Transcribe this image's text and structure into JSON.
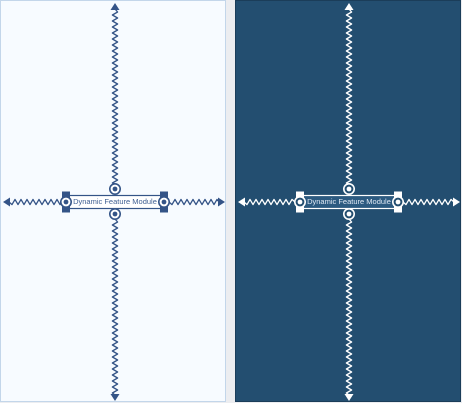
{
  "panels": [
    {
      "theme": "light",
      "background": "#f7fbff",
      "border": "#c3d6ea",
      "stroke": "#345487",
      "chip_fill": "#ffffff",
      "chip_text": "#3f5f92",
      "label": "Dynamic Feature Module"
    },
    {
      "theme": "dark",
      "background": "#234e70",
      "border": "#1b3d59",
      "stroke": "#ffffff",
      "chip_fill": "#2c5a80",
      "chip_text": "#dfe9f4",
      "label": "Dynamic Feature Module"
    }
  ],
  "icons": {
    "constraint_handle": "hollow-circle-handle-icon",
    "arrowhead": "arrowhead-icon",
    "resize_handle": "square-resize-handle-icon"
  }
}
